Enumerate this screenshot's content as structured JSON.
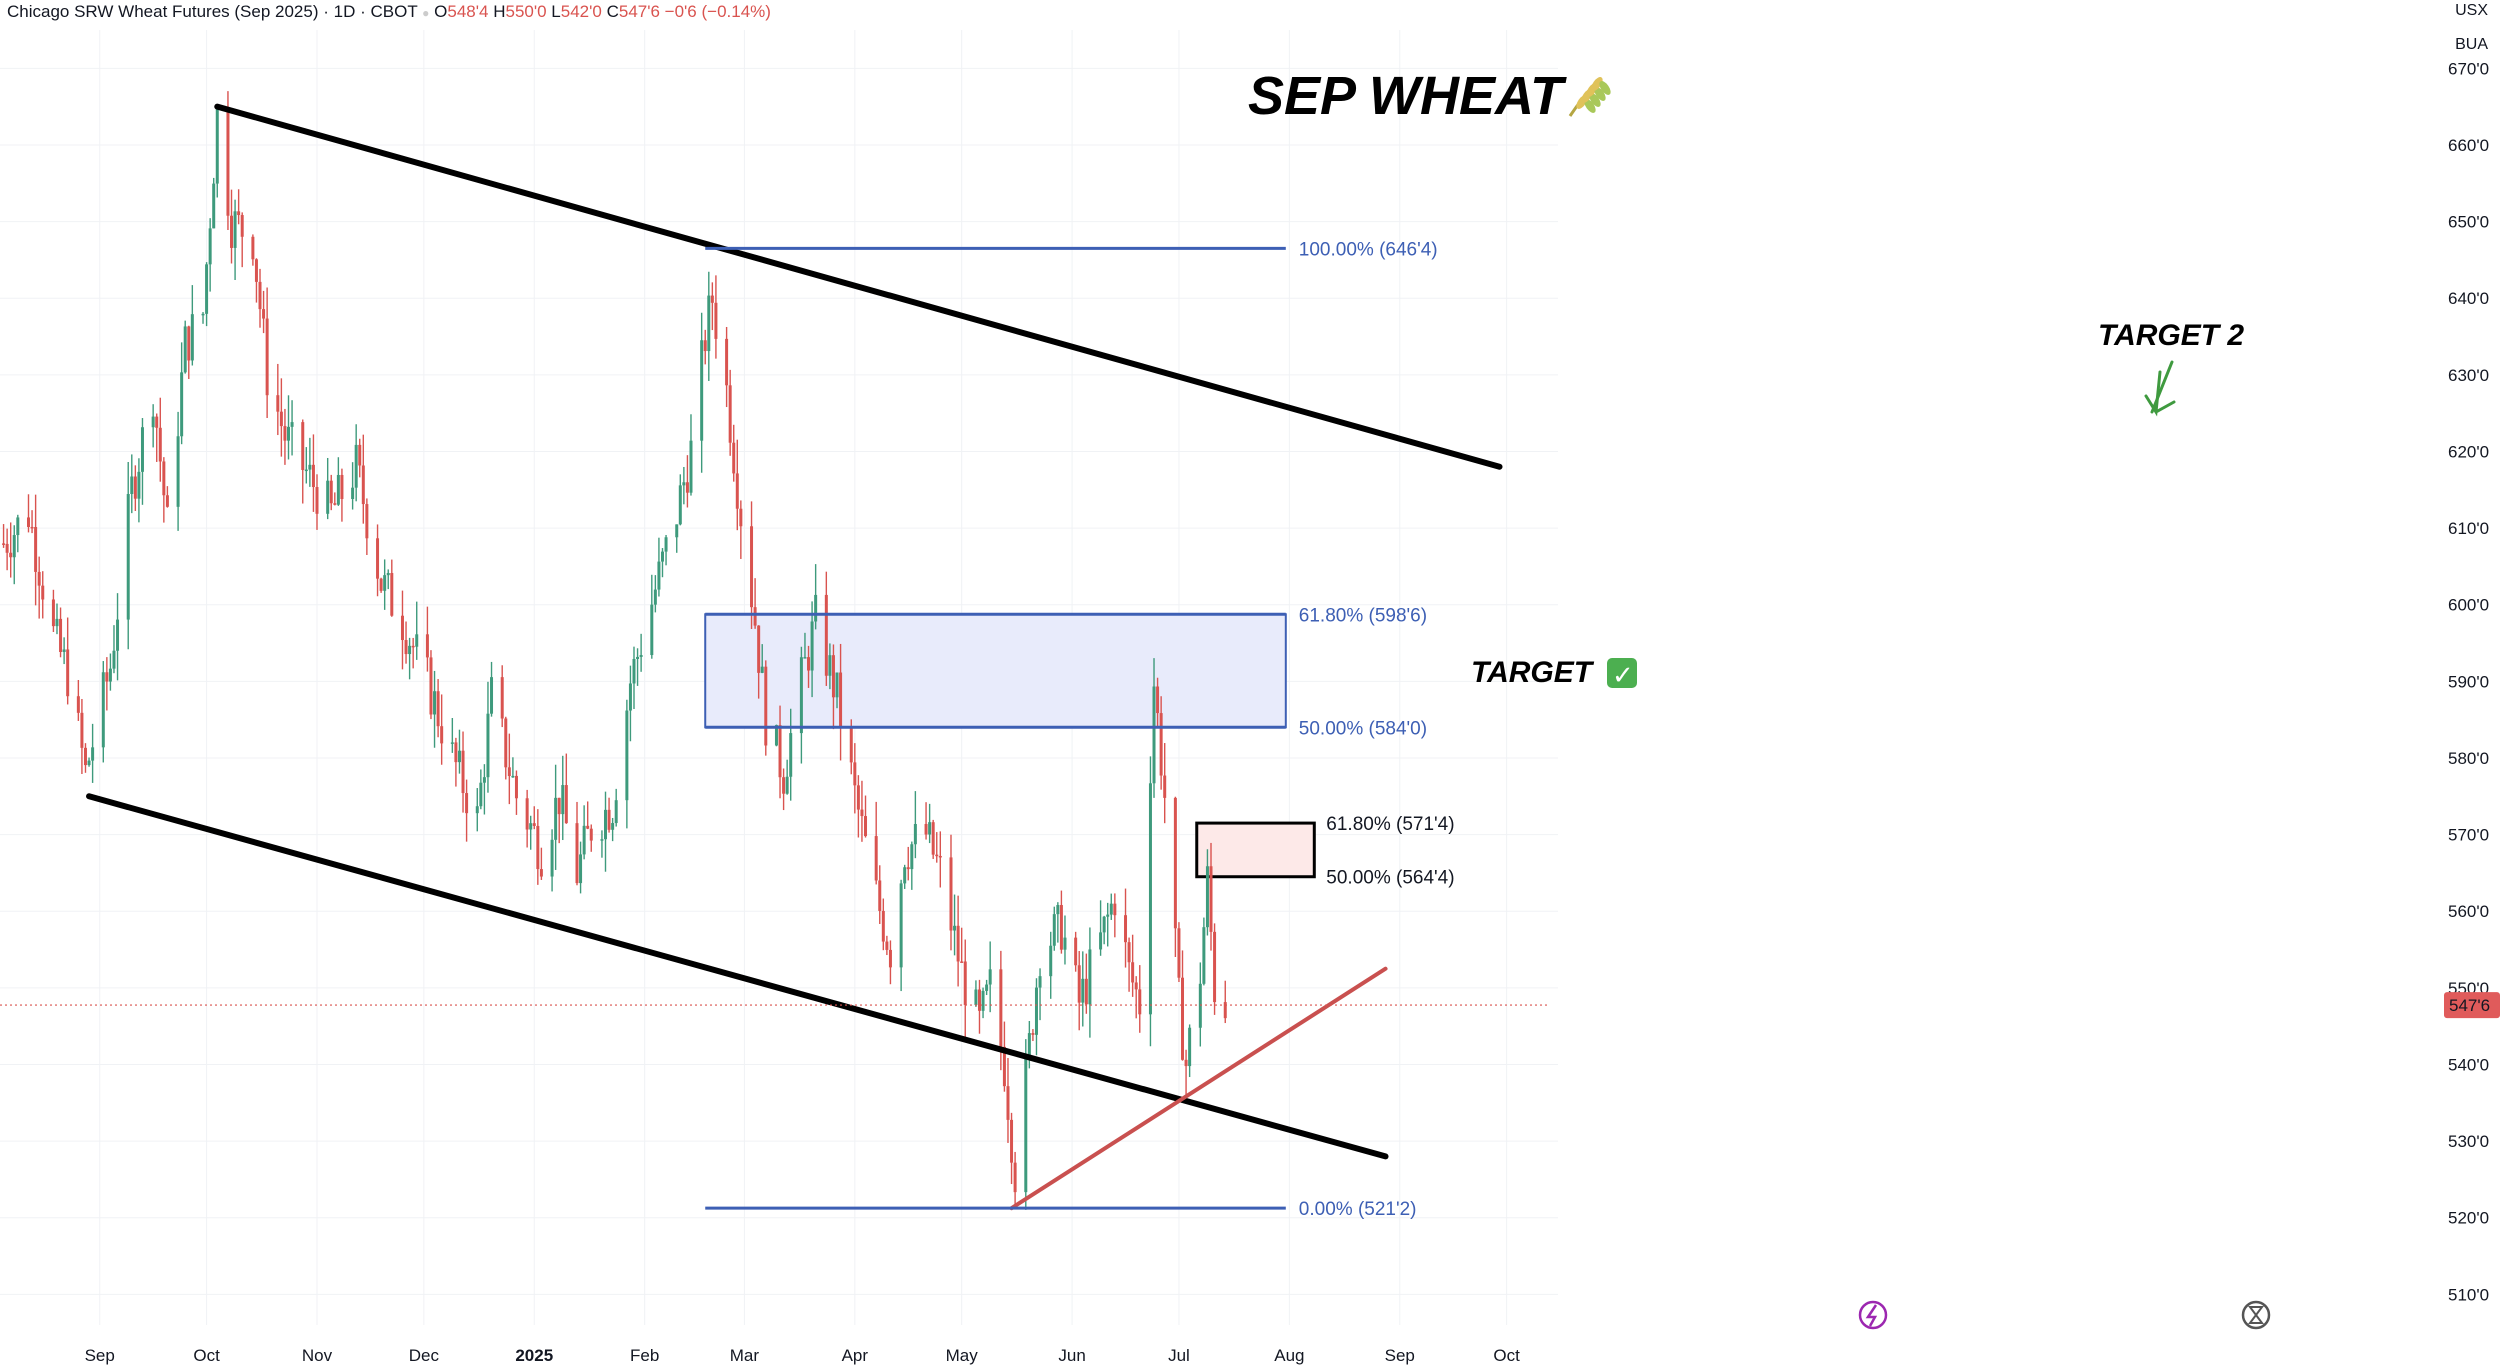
{
  "header": {
    "symbol": "Chicago SRW Wheat Futures (Sep 2025)",
    "sep1": "·",
    "interval": "1D",
    "sep2": "·",
    "exchange": "CBOT",
    "dot": "●",
    "o_key": "O",
    "o_val": "548'4",
    "h_key": "H",
    "h_val": "550'0",
    "l_key": "L",
    "l_val": "542'0",
    "c_key": "C",
    "c_val": "547'6",
    "change": "−0'6 (−0.14%)"
  },
  "units": {
    "currency": "USX",
    "unit": "BUA"
  },
  "colors": {
    "up": "#3e9a7c",
    "down": "#d9534f",
    "channel": "#000000",
    "fib": "#3d5fb4",
    "zone_fill": "#e8ebfb",
    "trend": "#c9504f",
    "pink_fill": "#fde9e8",
    "price_tag": "#e05b5b",
    "target2_arrow": "#3f9a3f",
    "checkmark_bg": "#4caf50"
  },
  "annotations": {
    "title": "SEP WHEAT",
    "title_icon": "wheat-icon",
    "target_label": "TARGET",
    "target_check": "✓",
    "target2_label": "TARGET 2"
  },
  "chart_data": {
    "type": "candlestick",
    "title": "",
    "ylim": [
      506,
      675
    ],
    "y_ticks": [
      "510'0",
      "520'0",
      "530'0",
      "540'0",
      "550'0",
      "560'0",
      "570'0",
      "580'0",
      "590'0",
      "600'0",
      "610'0",
      "620'0",
      "630'0",
      "640'0",
      "650'0",
      "660'0",
      "670'0"
    ],
    "x_ticks": [
      "Sep",
      "Oct",
      "Nov",
      "Dec",
      "2025",
      "Feb",
      "Mar",
      "Apr",
      "May",
      "Jun",
      "Jul",
      "Aug",
      "Sep",
      "Oct"
    ],
    "x_tick_dates": [
      "2024-09-01",
      "2024-10-01",
      "2024-11-01",
      "2024-12-01",
      "2025-01-01",
      "2025-02-01",
      "2025-03-01",
      "2025-04-01",
      "2025-05-01",
      "2025-06-01",
      "2025-07-01",
      "2025-08-01",
      "2025-09-01",
      "2025-10-01"
    ],
    "x_range_dates": [
      "2024-08-04",
      "2025-10-07"
    ],
    "last_price": 547.75,
    "last_price_label": "547'6",
    "price_path": [
      [
        "2024-08-05",
        608
      ],
      [
        "2024-08-12",
        612
      ],
      [
        "2024-08-19",
        596
      ],
      [
        "2024-08-23",
        591
      ],
      [
        "2024-08-28",
        578
      ],
      [
        "2024-09-04",
        592
      ],
      [
        "2024-09-10",
        615
      ],
      [
        "2024-09-16",
        628
      ],
      [
        "2024-09-20",
        610
      ],
      [
        "2024-09-25",
        634
      ],
      [
        "2024-09-30",
        638
      ],
      [
        "2024-10-04",
        664
      ],
      [
        "2024-10-08",
        650
      ],
      [
        "2024-10-14",
        648
      ],
      [
        "2024-10-18",
        630
      ],
      [
        "2024-10-23",
        622
      ],
      [
        "2024-10-28",
        618
      ],
      [
        "2024-11-05",
        612
      ],
      [
        "2024-11-12",
        618
      ],
      [
        "2024-11-19",
        603
      ],
      [
        "2024-11-25",
        598
      ],
      [
        "2024-12-02",
        590
      ],
      [
        "2024-12-09",
        580
      ],
      [
        "2024-12-16",
        572
      ],
      [
        "2024-12-20",
        588
      ],
      [
        "2024-12-27",
        575
      ],
      [
        "2025-01-03",
        568
      ],
      [
        "2025-01-08",
        575
      ],
      [
        "2025-01-13",
        565
      ],
      [
        "2025-01-17",
        571
      ],
      [
        "2025-01-23",
        574
      ],
      [
        "2025-01-28",
        590
      ],
      [
        "2025-02-04",
        602
      ],
      [
        "2025-02-10",
        612
      ],
      [
        "2025-02-14",
        620
      ],
      [
        "2025-02-18",
        635
      ],
      [
        "2025-02-20",
        640
      ],
      [
        "2025-02-24",
        628
      ],
      [
        "2025-02-28",
        612
      ],
      [
        "2025-03-04",
        598
      ],
      [
        "2025-03-07",
        585
      ],
      [
        "2025-03-12",
        578
      ],
      [
        "2025-03-17",
        590
      ],
      [
        "2025-03-21",
        598
      ],
      [
        "2025-03-27",
        588
      ],
      [
        "2025-04-01",
        575
      ],
      [
        "2025-04-07",
        562
      ],
      [
        "2025-04-11",
        555
      ],
      [
        "2025-04-15",
        568
      ],
      [
        "2025-04-21",
        570
      ],
      [
        "2025-04-25",
        565
      ],
      [
        "2025-05-01",
        552
      ],
      [
        "2025-05-06",
        545
      ],
      [
        "2025-05-09",
        550
      ],
      [
        "2025-05-13",
        540
      ],
      [
        "2025-05-16",
        526
      ],
      [
        "2025-05-19",
        538
      ],
      [
        "2025-05-23",
        555
      ],
      [
        "2025-05-29",
        558
      ],
      [
        "2025-06-03",
        548
      ],
      [
        "2025-06-09",
        556
      ],
      [
        "2025-06-13",
        562
      ],
      [
        "2025-06-17",
        552
      ],
      [
        "2025-06-20",
        548
      ],
      [
        "2025-06-24",
        590
      ],
      [
        "2025-06-27",
        575
      ],
      [
        "2025-07-01",
        548
      ],
      [
        "2025-07-03",
        540
      ],
      [
        "2025-07-07",
        552
      ],
      [
        "2025-07-09",
        564
      ],
      [
        "2025-07-11",
        550
      ],
      [
        "2025-07-14",
        547.75
      ]
    ],
    "lines": [
      {
        "name": "channel-upper",
        "from": [
          "2024-10-04",
          665
        ],
        "to": [
          "2025-09-29",
          618
        ]
      },
      {
        "name": "channel-lower",
        "from": [
          "2024-08-29",
          575
        ],
        "to": [
          "2025-08-28",
          528
        ]
      },
      {
        "name": "uptrend",
        "from": [
          "2025-05-15",
          521.25
        ],
        "to": [
          "2025-08-28",
          552.5
        ]
      }
    ],
    "fib_levels": [
      {
        "label": "100.00% (646'4)",
        "value": 646.5
      },
      {
        "label": "61.80% (598'6)",
        "value": 598.75
      },
      {
        "label": "50.00% (584'0)",
        "value": 584.0
      },
      {
        "label": "0.00% (521'2)",
        "value": 521.25
      }
    ],
    "fib_range_dates": [
      "2025-02-18",
      "2025-07-31"
    ],
    "fib_zone": {
      "from": 584.0,
      "to": 598.75
    },
    "small_zone": {
      "from_date": "2025-07-06",
      "to_date": "2025-08-08",
      "top": 571.5,
      "bottom": 564.5,
      "labels": [
        "61.80% (571'4)",
        "50.00% (564'4)"
      ]
    }
  }
}
